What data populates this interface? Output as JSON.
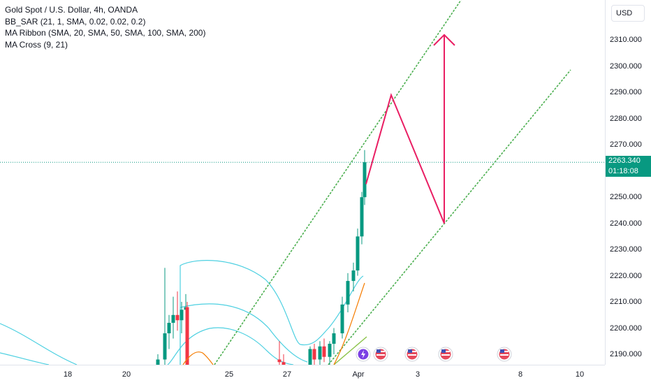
{
  "legend": {
    "title": "Gold Spot / U.S. Dollar, 4h, OANDA",
    "indicators": [
      "BB_SAR (21, 1, SMA, 0.02, 0.02, 0.2)",
      "MA Ribbon (SMA, 20, SMA, 50, SMA, 100, SMA, 200)",
      "MA Cross (9, 21)"
    ]
  },
  "price_axis": {
    "currency": "USD",
    "current_price": "2263.340",
    "countdown": "01:18:08"
  },
  "colors": {
    "up": "#089981",
    "down": "#f23645",
    "bb": "#4dd0e1",
    "channel": "#4caf50",
    "projection": "#e91e63",
    "price_line": "#089981"
  },
  "chart_data": {
    "type": "candlestick",
    "symbol": "XAUUSD",
    "timeframe": "4h",
    "y_ticks": [
      2190,
      2200,
      2210,
      2220,
      2230,
      2240,
      2250,
      2260,
      2270,
      2280,
      2290,
      2300,
      2310
    ],
    "y_tick_labels": [
      "2190.000",
      "2200.000",
      "2210.000",
      "2220.000",
      "2230.000",
      "2240.000",
      "2250.000",
      "2260.000",
      "2270.000",
      "2280.000",
      "2290.000",
      "2300.000",
      "2310.000"
    ],
    "ylim": [
      2185.5,
      2325
    ],
    "x_ticks": [
      "18",
      "20",
      "25",
      "27",
      "Apr",
      "3",
      "8",
      "10"
    ],
    "current_price": 2263.34,
    "candles": [
      {
        "o": 2186,
        "h": 2190,
        "l": 2185.5,
        "c": 2188
      },
      {
        "o": 2188,
        "h": 2223,
        "l": 2185.5,
        "c": 2198
      },
      {
        "o": 2198,
        "h": 2205,
        "l": 2192,
        "c": 2202
      },
      {
        "o": 2202,
        "h": 2212,
        "l": 2196,
        "c": 2205
      },
      {
        "o": 2205,
        "h": 2214,
        "l": 2199,
        "c": 2203
      },
      {
        "o": 2203,
        "h": 2210,
        "l": 2198,
        "c": 2207
      },
      {
        "o": 2207,
        "h": 2213,
        "l": 2202,
        "c": 2208
      },
      {
        "o": 2208,
        "h": 2210,
        "l": 2185.5,
        "c": 2186
      },
      {
        "o": 2188,
        "h": 2195,
        "l": 2185.5,
        "c": 2187
      },
      {
        "o": 2187,
        "h": 2190,
        "l": 2185.5,
        "c": 2186
      },
      {
        "o": 2186,
        "h": 2193,
        "l": 2185.5,
        "c": 2192
      },
      {
        "o": 2192,
        "h": 2194,
        "l": 2186,
        "c": 2188
      },
      {
        "o": 2188,
        "h": 2195,
        "l": 2185.5,
        "c": 2193
      },
      {
        "o": 2193,
        "h": 2196,
        "l": 2187,
        "c": 2189
      },
      {
        "o": 2189,
        "h": 2195,
        "l": 2186,
        "c": 2194
      },
      {
        "o": 2194,
        "h": 2200,
        "l": 2190,
        "c": 2198
      },
      {
        "o": 2198,
        "h": 2212,
        "l": 2196,
        "c": 2209
      },
      {
        "o": 2209,
        "h": 2221,
        "l": 2206,
        "c": 2218
      },
      {
        "o": 2218,
        "h": 2225,
        "l": 2214,
        "c": 2222
      },
      {
        "o": 2222,
        "h": 2238,
        "l": 2220,
        "c": 2235
      },
      {
        "o": 2235,
        "h": 2252,
        "l": 2232,
        "c": 2250
      },
      {
        "o": 2250,
        "h": 2268,
        "l": 2247,
        "c": 2263.34
      }
    ],
    "trend_channel": {
      "upper": [
        {
          "date": "Mar 25",
          "price": 2185.5
        },
        {
          "date": "Apr 5",
          "price": 2325
        }
      ],
      "lower": [
        {
          "date": "Mar 27",
          "price": 2185.5
        },
        {
          "date": "Apr 9",
          "price": 2298
        }
      ]
    },
    "projection_path": [
      2255,
      2289,
      2240,
      2312
    ]
  }
}
